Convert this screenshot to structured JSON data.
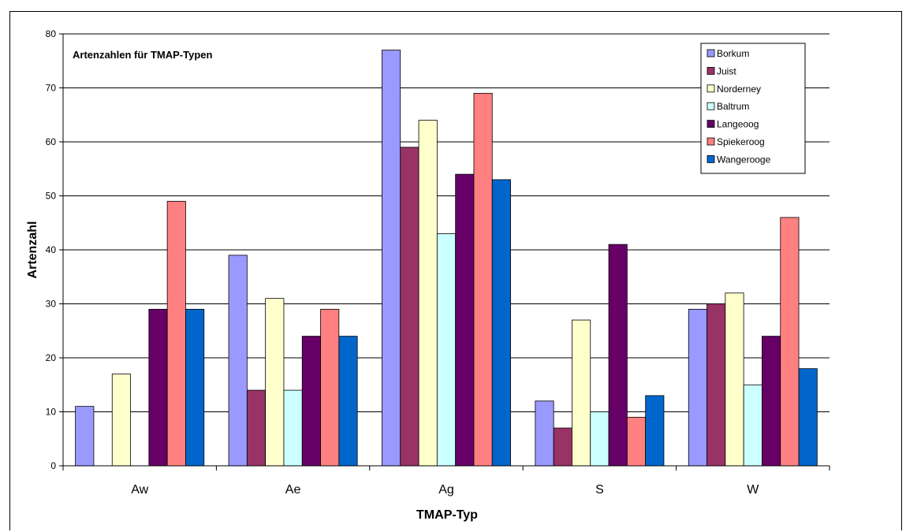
{
  "chart_data": {
    "type": "bar",
    "title": "Artenzahlen für TMAP-Typen",
    "xlabel": "TMAP-Typ",
    "ylabel": "Artenzahl",
    "ylim": [
      0,
      80
    ],
    "yticks": [
      0,
      10,
      20,
      30,
      40,
      50,
      60,
      70,
      80
    ],
    "grid": true,
    "legend_position": "top-right",
    "categories": [
      "Aw",
      "Ae",
      "Ag",
      "S",
      "W"
    ],
    "series": [
      {
        "name": "Borkum",
        "color": "#9999ff",
        "values": [
          11,
          39,
          77,
          12,
          29
        ]
      },
      {
        "name": "Juist",
        "color": "#993366",
        "values": [
          0,
          14,
          59,
          7,
          30
        ]
      },
      {
        "name": "Norderney",
        "color": "#ffffcc",
        "values": [
          17,
          31,
          64,
          27,
          32
        ]
      },
      {
        "name": "Baltrum",
        "color": "#ccffff",
        "values": [
          0,
          14,
          43,
          10,
          15
        ]
      },
      {
        "name": "Langeoog",
        "color": "#660066",
        "values": [
          29,
          24,
          54,
          41,
          24
        ]
      },
      {
        "name": "Spiekeroog",
        "color": "#ff8080",
        "values": [
          49,
          29,
          69,
          9,
          46
        ]
      },
      {
        "name": "Wangerooge",
        "color": "#0066cc",
        "values": [
          29,
          24,
          53,
          13,
          18
        ]
      }
    ]
  }
}
